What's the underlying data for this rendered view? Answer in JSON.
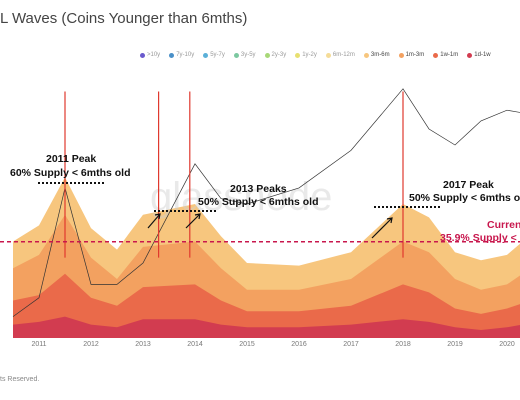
{
  "chart_data": {
    "type": "area",
    "title": "L Waves (Coins Younger than 6mths)",
    "x_ticks": [
      "2011",
      "2012",
      "2013",
      "2014",
      "2015",
      "2016",
      "2017",
      "2018",
      "2019",
      "2020"
    ],
    "legend": [
      {
        "label": ">10y",
        "color": "#6a5acd",
        "active": false
      },
      {
        "label": "7y-10y",
        "color": "#4a90c8",
        "active": false
      },
      {
        "label": "5y-7y",
        "color": "#5bb0d8",
        "active": false
      },
      {
        "label": "3y-5y",
        "color": "#7cc8a0",
        "active": false
      },
      {
        "label": "2y-3y",
        "color": "#a8d878",
        "active": false
      },
      {
        "label": "1y-2y",
        "color": "#e8e070",
        "active": false
      },
      {
        "label": "6m-12m",
        "color": "#f5dc98",
        "active": false
      },
      {
        "label": "3m-6m",
        "color": "#f7c67e",
        "active": true
      },
      {
        "label": "1m-3m",
        "color": "#f3a160",
        "active": true
      },
      {
        "label": "1w-1m",
        "color": "#ea6a4a",
        "active": true
      },
      {
        "label": "1d-1w",
        "color": "#d23c50",
        "active": true
      }
    ],
    "series": [
      {
        "name": "3m-6m",
        "values": [
          0.36,
          0.42,
          0.6,
          0.41,
          0.33,
          0.46,
          0.5,
          0.38,
          0.28,
          0.27,
          0.32,
          0.5,
          0.45,
          0.32,
          0.29,
          0.31,
          0.36
        ]
      },
      {
        "name": "1m-3m",
        "values": [
          0.26,
          0.31,
          0.46,
          0.3,
          0.22,
          0.34,
          0.36,
          0.26,
          0.18,
          0.18,
          0.22,
          0.36,
          0.32,
          0.22,
          0.18,
          0.2,
          0.24
        ]
      },
      {
        "name": "1w-1m",
        "values": [
          0.14,
          0.16,
          0.24,
          0.15,
          0.12,
          0.19,
          0.2,
          0.14,
          0.1,
          0.1,
          0.12,
          0.2,
          0.17,
          0.11,
          0.09,
          0.11,
          0.13
        ]
      },
      {
        "name": "1d-1w",
        "values": [
          0.05,
          0.06,
          0.08,
          0.05,
          0.04,
          0.07,
          0.07,
          0.05,
          0.04,
          0.04,
          0.05,
          0.07,
          0.06,
          0.04,
          0.03,
          0.04,
          0.05
        ]
      }
    ],
    "x": [
      2010.5,
      2011.0,
      2011.5,
      2012.0,
      2012.5,
      2013.0,
      2014.0,
      2014.5,
      2015.0,
      2016.0,
      2017.0,
      2018.0,
      2018.5,
      2019.0,
      2019.5,
      2020.0,
      2020.3
    ],
    "price_line": [
      0.08,
      0.15,
      0.56,
      0.2,
      0.2,
      0.28,
      0.65,
      0.52,
      0.5,
      0.56,
      0.7,
      0.93,
      0.78,
      0.72,
      0.81,
      0.85,
      0.84
    ],
    "reference_line": 0.359,
    "peaks": [
      2011.5,
      2013.3,
      2013.9,
      2018.0
    ],
    "watermark": "glassnode",
    "annotations": {
      "peak_2011_title": "2011 Peak",
      "peak_2011_sub": "60% Supply < 6mths old",
      "peak_2013_title": "2013 Peaks",
      "peak_2013_sub": "50% Supply < 6mths old",
      "peak_2017_title": "2017 Peak",
      "peak_2017_sub": "50% Supply < 6mths ol",
      "current_title": "Curren",
      "current_sub": "35.9% Supply <"
    }
  },
  "footer": "ts Reserved."
}
